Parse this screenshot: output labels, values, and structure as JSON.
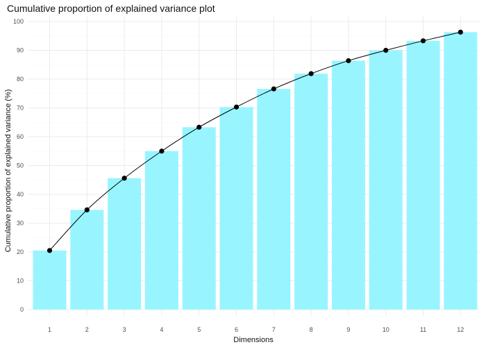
{
  "chart_data": {
    "type": "bar",
    "title": "Cumulative proportion of explained variance plot",
    "xlabel": "Dimensions",
    "ylabel": "Cumulative proportion of explained variance (%)",
    "categories": [
      "1",
      "2",
      "3",
      "4",
      "5",
      "6",
      "7",
      "8",
      "9",
      "10",
      "11",
      "12"
    ],
    "values": [
      20.5,
      34.6,
      45.6,
      55.0,
      63.3,
      70.3,
      76.6,
      81.9,
      86.4,
      90.0,
      93.3,
      96.3
    ],
    "overlay": "line-with-points",
    "ylim": [
      0,
      100
    ],
    "yticks": [
      0,
      10,
      20,
      30,
      40,
      50,
      60,
      70,
      80,
      90,
      100
    ],
    "grid": true,
    "bar_color": "#98F5FF",
    "line_color": "#000000",
    "point_color": "#000000"
  }
}
